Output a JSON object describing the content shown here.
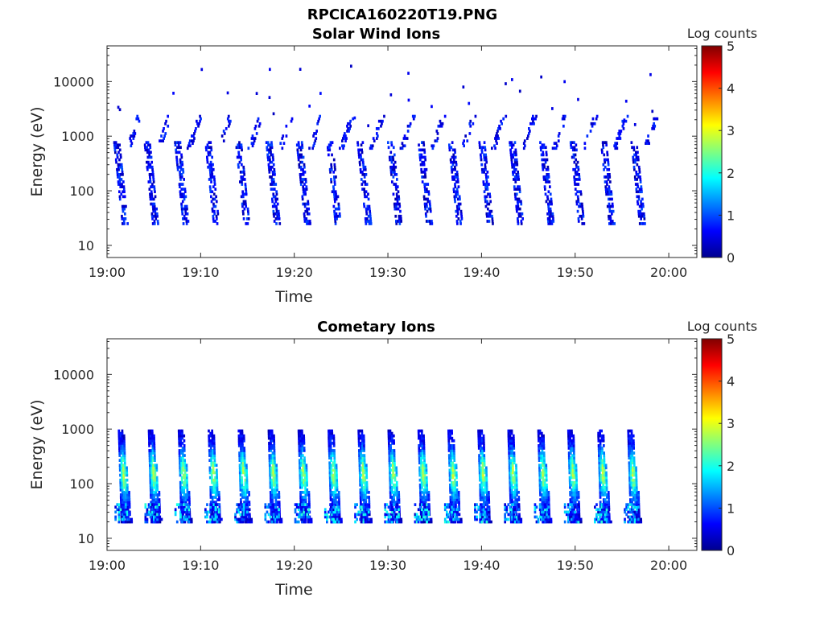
{
  "figure_title": "RPCICA160220T19.PNG",
  "chart_data": [
    {
      "type": "heatmap",
      "title": "Solar Wind Ions",
      "xlabel": "Time",
      "ylabel": "Energy (eV)",
      "x_ticks": [
        "19:00",
        "19:10",
        "19:20",
        "19:30",
        "19:40",
        "19:50",
        "20:00"
      ],
      "y_ticks": [
        "10",
        "100",
        "1000",
        "10000"
      ],
      "xlim": [
        "19:00",
        "20:03"
      ],
      "ylim": [
        6,
        45000
      ],
      "y_scale": "log",
      "colorbar": {
        "label": "Log counts",
        "range": [
          0,
          5
        ],
        "ticks": [
          "0",
          "1",
          "2",
          "3",
          "4",
          "5"
        ]
      },
      "colormap": "jet",
      "sweep_period_min": 3.25,
      "first_sweep": "19:01",
      "last_sweep": "19:57",
      "main_band_eV": [
        25,
        800
      ],
      "main_band_log_counts": [
        0.2,
        1.0
      ],
      "upper_band_eV": [
        600,
        2500
      ],
      "upper_band_log_counts": [
        0.3,
        0.9
      ],
      "sparse_events_eV": [
        1000,
        20000
      ]
    },
    {
      "type": "heatmap",
      "title": "Cometary Ions",
      "xlabel": "Time",
      "ylabel": "Energy (eV)",
      "x_ticks": [
        "19:00",
        "19:10",
        "19:20",
        "19:30",
        "19:40",
        "19:50",
        "20:00"
      ],
      "y_ticks": [
        "10",
        "100",
        "1000",
        "10000"
      ],
      "xlim": [
        "19:00",
        "20:03"
      ],
      "ylim": [
        6,
        45000
      ],
      "y_scale": "log",
      "colorbar": {
        "label": "Log counts",
        "range": [
          0,
          5
        ],
        "ticks": [
          "0",
          "1",
          "2",
          "3",
          "4",
          "5"
        ]
      },
      "colormap": "jet",
      "sweep_period_min": 3.2,
      "first_sweep": "19:01",
      "last_sweep": "19:56",
      "main_band_eV": [
        20,
        1000
      ],
      "peak_log_counts": 2.5,
      "peak_energy_eV": 150,
      "low_energy_feature_eV": [
        20,
        45
      ]
    }
  ]
}
